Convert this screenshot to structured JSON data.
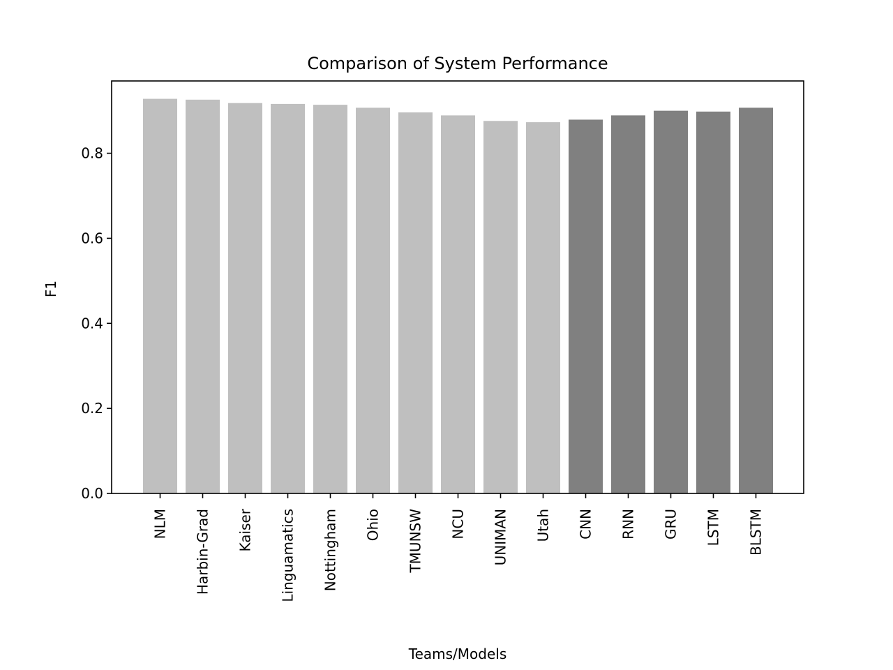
{
  "chart_data": {
    "type": "bar",
    "title": "Comparison of System Performance",
    "xlabel": "Teams/Models",
    "ylabel": "F1",
    "ylim": [
      0,
      0.97
    ],
    "yticks": [
      "0.0",
      "0.2",
      "0.4",
      "0.6",
      "0.8"
    ],
    "ytick_values": [
      0.0,
      0.2,
      0.4,
      0.6,
      0.8
    ],
    "grid": false,
    "legend": "none",
    "categories": [
      "NLM",
      "Harbin-Grad",
      "Kaiser",
      "Linguamatics",
      "Nottingham",
      "Ohio",
      "TMUNSW",
      "NCU",
      "UNIMAN",
      "Utah",
      "CNN",
      "RNN",
      "GRU",
      "LSTM",
      "BLSTM"
    ],
    "values": [
      0.928,
      0.926,
      0.918,
      0.916,
      0.914,
      0.907,
      0.896,
      0.889,
      0.876,
      0.873,
      0.879,
      0.889,
      0.9,
      0.898,
      0.907
    ],
    "bar_colors": [
      "#bfbfbf",
      "#bfbfbf",
      "#bfbfbf",
      "#bfbfbf",
      "#bfbfbf",
      "#bfbfbf",
      "#bfbfbf",
      "#bfbfbf",
      "#bfbfbf",
      "#bfbfbf",
      "#808080",
      "#808080",
      "#808080",
      "#808080",
      "#808080"
    ]
  }
}
